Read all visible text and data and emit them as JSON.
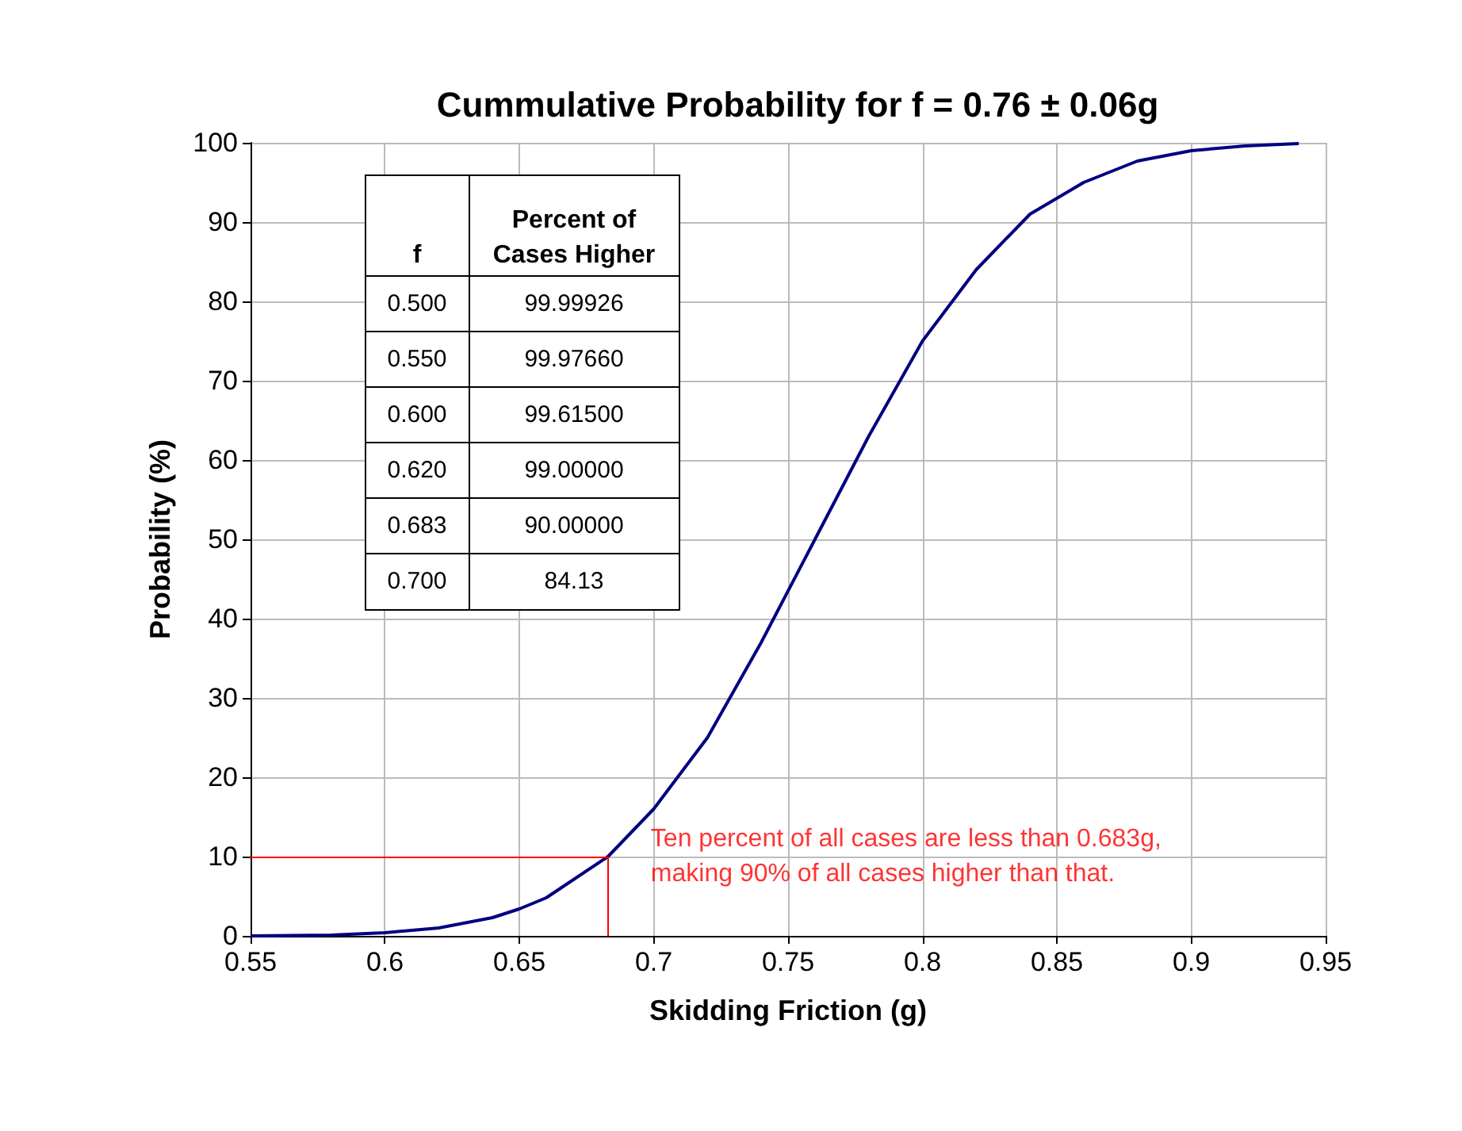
{
  "chart_data": {
    "type": "line",
    "title": "Cummulative Probability for f = 0.76 ± 0.06g",
    "xlabel": "Skidding Friction (g)",
    "ylabel": "Probability (%)",
    "x": [
      0.55,
      0.58,
      0.6,
      0.62,
      0.64,
      0.65,
      0.66,
      0.683,
      0.7,
      0.72,
      0.74,
      0.76,
      0.78,
      0.8,
      0.82,
      0.84,
      0.86,
      0.88,
      0.9,
      0.92,
      0.94
    ],
    "series": [
      {
        "color": "#000080",
        "values": [
          0,
          0.1,
          0.4,
          1,
          2.3,
          3.4,
          4.8,
          10,
          16,
          25,
          37,
          50,
          63,
          75,
          84,
          91,
          95,
          97.7,
          99,
          99.6,
          99.9
        ]
      }
    ],
    "xlim": [
      0.55,
      0.95
    ],
    "xticks": [
      0.55,
      0.6,
      0.65,
      0.7,
      0.75,
      0.8,
      0.85,
      0.9,
      0.95
    ],
    "ylim": [
      0,
      100
    ],
    "yticks": [
      0,
      10,
      20,
      30,
      40,
      50,
      60,
      70,
      80,
      90,
      100
    ],
    "grid": true,
    "marker": "none",
    "line_style": "solid",
    "ref_lines": [
      {
        "axis": "y",
        "value": 10,
        "color": "#ff0000"
      },
      {
        "axis": "x",
        "value": 0.683,
        "color": "#ff0000"
      }
    ],
    "annotations": [
      {
        "text": "Ten percent of all cases are less than 0.683g,\nmaking 90% of all cases higher than that.",
        "x": 0.683,
        "y": 10
      },
      "f",
      "Percent of\nCases Higher",
      "0.500",
      "99.99926",
      "0.550",
      "99.97660",
      "0.600",
      "99.61500",
      "0.620",
      "99.00000",
      "0.683",
      "90.00000",
      "0.700",
      "84.13"
    ]
  }
}
